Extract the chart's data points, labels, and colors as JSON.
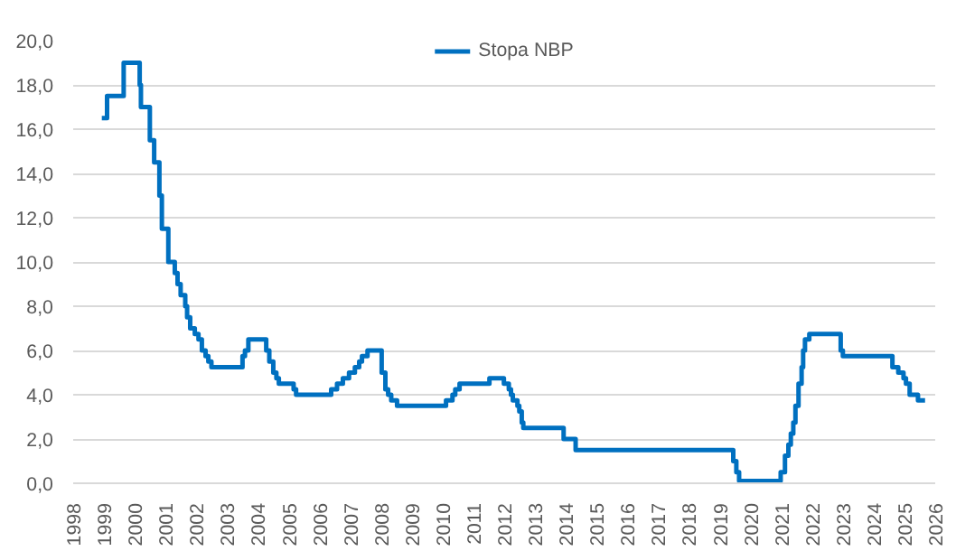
{
  "chart_data": {
    "type": "step",
    "x": [
      1998.93,
      1999.1,
      1999.64,
      2000.16,
      2000.2,
      2000.49,
      2000.63,
      2000.8,
      2000.88,
      2001.09,
      2001.3,
      2001.39,
      2001.49,
      2001.64,
      2001.7,
      2001.8,
      2001.95,
      2002.07,
      2002.18,
      2002.3,
      2002.39,
      2002.49,
      2003.5,
      2003.58,
      2003.69,
      2004.27,
      2004.37,
      2004.5,
      2004.6,
      2004.68,
      2005.16,
      2005.24,
      2006.38,
      2006.57,
      2006.76,
      2006.96,
      2007.15,
      2007.29,
      2007.38,
      2007.56,
      2008.02,
      2008.14,
      2008.23,
      2008.33,
      2008.52,
      2010.11,
      2010.32,
      2010.41,
      2010.55,
      2011.52,
      2011.99,
      2012.15,
      2012.22,
      2012.28,
      2012.43,
      2012.49,
      2012.57,
      2012.62,
      2013.93,
      2014.32,
      2019.44,
      2019.54,
      2019.63,
      2020.98,
      2021.12,
      2021.23,
      2021.31,
      2021.39,
      2021.46,
      2021.56,
      2021.66,
      2021.71,
      2021.77,
      2021.91,
      2022.93,
      2023.0,
      2024.61,
      2024.8,
      2024.97,
      2025.05,
      2025.17,
      2025.44,
      2025.67
    ],
    "series": [
      {
        "name": "Stopa NBP",
        "color": "#0070c0",
        "values": [
          16.5,
          17.5,
          19.0,
          18.0,
          17.0,
          15.5,
          14.5,
          13.0,
          11.5,
          10.0,
          9.5,
          9.0,
          8.5,
          8.0,
          7.5,
          7.0,
          6.75,
          6.5,
          6.0,
          5.75,
          5.5,
          5.25,
          5.75,
          6.0,
          6.5,
          6.0,
          5.5,
          5.0,
          4.75,
          4.5,
          4.25,
          4.0,
          4.25,
          4.5,
          4.75,
          5.0,
          5.25,
          5.5,
          5.75,
          6.0,
          5.0,
          4.25,
          4.0,
          3.75,
          3.5,
          3.75,
          4.0,
          4.25,
          4.5,
          4.75,
          4.5,
          4.25,
          4.0,
          3.75,
          3.5,
          3.25,
          2.75,
          2.5,
          2.0,
          1.5,
          1.0,
          0.5,
          0.1,
          0.5,
          1.25,
          1.75,
          2.25,
          2.75,
          3.5,
          4.5,
          5.25,
          6.0,
          6.5,
          6.75,
          6.0,
          5.75,
          5.25,
          5.0,
          4.75,
          4.5,
          4.0,
          3.75,
          3.75
        ]
      }
    ],
    "xlim": [
      1998,
      2026
    ],
    "xticks": [
      1998,
      1999,
      2000,
      2001,
      2002,
      2003,
      2004,
      2005,
      2006,
      2007,
      2008,
      2009,
      2010,
      2011,
      2012,
      2013,
      2014,
      2015,
      2016,
      2017,
      2018,
      2019,
      2020,
      2021,
      2022,
      2023,
      2024,
      2025,
      2026
    ],
    "ylim": [
      0,
      20
    ],
    "yticks": [
      {
        "value": 0,
        "label": "0,0"
      },
      {
        "value": 2,
        "label": "2,0"
      },
      {
        "value": 4,
        "label": "4,0"
      },
      {
        "value": 6,
        "label": "6,0"
      },
      {
        "value": 8,
        "label": "8,0"
      },
      {
        "value": 10,
        "label": "10,0"
      },
      {
        "value": 12,
        "label": "12,0"
      },
      {
        "value": 14,
        "label": "14,0"
      },
      {
        "value": 16,
        "label": "16,0"
      },
      {
        "value": 18,
        "label": "18,0"
      },
      {
        "value": 20,
        "label": "20,0"
      }
    ],
    "grid": "y",
    "legend": "top"
  }
}
